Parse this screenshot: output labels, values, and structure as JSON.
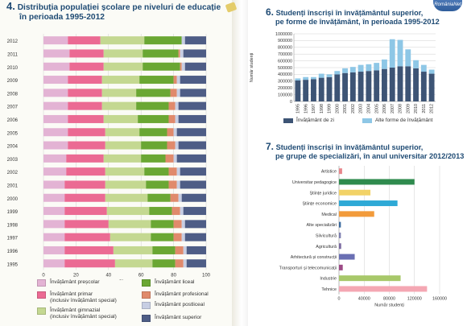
{
  "colors": {
    "title_blue": "#1f4b74",
    "prescolar": "#e3b3d4",
    "primar": "#eb6a93",
    "gimnazial": "#c4d891",
    "liceal": "#6aa733",
    "profesional": "#e08a6c",
    "postliceal": "#c7cee3",
    "superior": "#4e5d86",
    "chart6_zi": "#3d5475",
    "chart6_alte": "#8ec7e6",
    "chart7_grid": "#bdbdbd"
  },
  "corner_logo": "RomâniaNet",
  "chart4": {
    "number": "4.",
    "title_line1": "Distribuția populației școlare pe niveluri de educație",
    "title_line2": "în perioada 1995-2012",
    "xlabel": "%",
    "x_ticks": [
      "0",
      "20",
      "40",
      "60",
      "80",
      "100"
    ],
    "legend": [
      {
        "label_line1": "Învățământ preșcolar",
        "label_line2": "",
        "color": "#e3b3d4"
      },
      {
        "label_line1": "Învățământ liceal",
        "label_line2": "",
        "color": "#6aa733"
      },
      {
        "label_line1": "Învățământ primar",
        "label_line2": "(inclusiv învățământ special)",
        "color": "#eb6a93"
      },
      {
        "label_line1": "Învățământ profesional",
        "label_line2": "",
        "color": "#e08a6c"
      },
      {
        "label_line1": "Învățământ postliceal",
        "label_line2": "",
        "color": "#c7cee3"
      },
      {
        "label_line1": "Învățământ gimnazial",
        "label_line2": "(inclusiv învățământ special)",
        "color": "#c4d891"
      },
      {
        "label_line1": "Învățământ superior",
        "label_line2": "",
        "color": "#4e5d86"
      }
    ]
  },
  "chart6": {
    "number": "6.",
    "title_line1": "Studenți înscriși în învățământul superior,",
    "title_line2": "pe forme de învățământ, în perioada 1995-2012",
    "ylabel": "Număr studenți",
    "y_ticks": [
      "0",
      "100000",
      "200000",
      "300000",
      "400000",
      "500000",
      "600000",
      "700000",
      "800000",
      "900000",
      "1000000"
    ],
    "legend": [
      {
        "label": "Învățământ de zi",
        "color": "#3d5475"
      },
      {
        "label": "Alte forme de învățământ",
        "color": "#8ec7e6"
      }
    ]
  },
  "chart7": {
    "number": "7.",
    "title_line1": "Studenți înscriși în învățământul superior,",
    "title_line2": "pe grupe de specializări, în anul universitar 2012/2013",
    "xlabel": "Număr studenți",
    "x_ticks": [
      "0",
      "40000",
      "80000",
      "120000",
      "160000"
    ]
  },
  "chart_data": [
    {
      "type": "bar",
      "orientation": "horizontal",
      "stacked": "percent",
      "title": "Distribuția populației școlare pe niveluri de educație în perioada 1995-2012",
      "xlabel": "%",
      "xlim": [
        0,
        100
      ],
      "grid": true,
      "legend_position": "bottom",
      "categories": [
        "2012",
        "2011",
        "2010",
        "2009",
        "2008",
        "2007",
        "2006",
        "2005",
        "2004",
        "2003",
        "2002",
        "2001",
        "2000",
        "1999",
        "1998",
        "1997",
        "1996",
        "1995"
      ],
      "series": [
        {
          "name": "Învățământ preșcolar",
          "color": "#e3b3d4",
          "values": [
            15,
            16,
            16,
            15,
            15,
            15,
            15,
            15,
            15,
            14,
            14,
            13,
            13,
            13,
            13,
            13,
            13,
            13
          ]
        },
        {
          "name": "Învățământ primar (inclusiv învățământ special)",
          "color": "#eb6a93",
          "values": [
            20,
            21,
            21,
            21,
            21,
            21,
            22,
            23,
            23,
            23,
            24,
            25,
            25,
            26,
            27,
            28,
            30,
            31
          ]
        },
        {
          "name": "Învățământ gimnazial (inclusiv învățământ special)",
          "color": "#c4d891",
          "values": [
            27,
            24,
            24,
            23,
            21,
            21,
            21,
            21,
            22,
            23,
            24,
            25,
            26,
            26,
            26,
            25,
            24,
            23
          ]
        },
        {
          "name": "Învățământ liceal",
          "color": "#6aa733",
          "values": [
            23,
            22,
            23,
            21,
            21,
            20,
            19,
            17,
            16,
            15,
            15,
            14,
            14,
            14,
            14,
            14,
            14,
            14
          ]
        },
        {
          "name": "Învățământ profesional",
          "color": "#e08a6c",
          "values": [
            0,
            1,
            1,
            2,
            4,
            4,
            4,
            4,
            5,
            5,
            5,
            5,
            5,
            5,
            5,
            5,
            5,
            5
          ]
        },
        {
          "name": "Învățământ postliceal",
          "color": "#c7cee3",
          "values": [
            2,
            2,
            2,
            2,
            2,
            2,
            2,
            2,
            2,
            2,
            2,
            2,
            2,
            2,
            2,
            2,
            2,
            2
          ]
        },
        {
          "name": "Învățământ superior",
          "color": "#4e5d86",
          "values": [
            13,
            14,
            13,
            16,
            16,
            17,
            17,
            18,
            17,
            18,
            16,
            16,
            15,
            14,
            13,
            13,
            12,
            12
          ]
        }
      ]
    },
    {
      "type": "bar",
      "stacked": true,
      "title": "Studenți înscriși în învățământul superior, pe forme de învățământ, în perioada 1995-2012",
      "ylabel": "Număr studenți",
      "ylim": [
        0,
        1000000
      ],
      "grid": true,
      "legend_position": "bottom",
      "categories": [
        "1995",
        "1996",
        "1997",
        "1998",
        "1999",
        "2000",
        "2001",
        "2002",
        "2003",
        "2004",
        "2005",
        "2006",
        "2007",
        "2008",
        "2009",
        "2010",
        "2011",
        "2012"
      ],
      "series": [
        {
          "name": "Învățământ de zi",
          "color": "#3d5475",
          "values": [
            310000,
            320000,
            330000,
            350000,
            360000,
            400000,
            420000,
            430000,
            440000,
            450000,
            460000,
            480000,
            500000,
            520000,
            520000,
            490000,
            440000,
            410000
          ]
        },
        {
          "name": "Alte forme de învățământ",
          "color": "#8ec7e6",
          "values": [
            30000,
            40000,
            30000,
            60000,
            40000,
            50000,
            70000,
            80000,
            100000,
            100000,
            110000,
            140000,
            420000,
            390000,
            250000,
            120000,
            100000,
            60000
          ]
        }
      ]
    },
    {
      "type": "bar",
      "orientation": "horizontal",
      "title": "Studenți înscriși în învățământul superior, pe grupe de specializări, în anul universitar 2012/2013",
      "xlabel": "Număr studenți",
      "xlim": [
        0,
        160000
      ],
      "grid": true,
      "categories": [
        "Artistice",
        "Universitar pedagogice",
        "Științe juridice",
        "Științe economice",
        "Medical",
        "Alte specializări",
        "Silvicultură",
        "Agricultură",
        "Arhitectură și construcții",
        "Transporturi și telecomunicații",
        "Industrie",
        "Tehnice"
      ],
      "values": [
        5000,
        120000,
        50000,
        93000,
        56000,
        3000,
        3000,
        3500,
        25000,
        6000,
        98000,
        140000
      ],
      "colors": [
        "#e8868c",
        "#2f8b4e",
        "#f2d267",
        "#2ea9d6",
        "#f29b3b",
        "#3b6a9e",
        "#7d7fb0",
        "#7b6aa1",
        "#6a6fb3",
        "#9c4a86",
        "#a8c86a",
        "#f4a7b3"
      ]
    }
  ]
}
